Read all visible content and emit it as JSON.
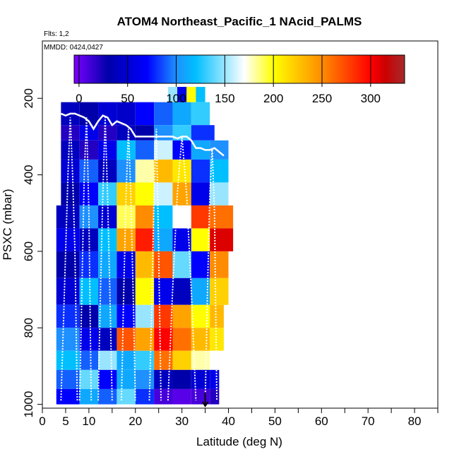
{
  "chart_data": {
    "type": "heatmap",
    "title": "ATOM4 Northeast_Pacific_1 NAcid_PALMS",
    "flights_note": "Flts: 1,2",
    "date_note": "MMDD: 0424,0427",
    "xlabel": "Latitude (deg N)",
    "ylabel": "PSXC (mbar)",
    "xlim": [
      0,
      85
    ],
    "ylim": [
      1010,
      50
    ],
    "x_ticks": [
      0,
      5,
      10,
      20,
      30,
      40,
      50,
      60,
      70,
      80
    ],
    "x_minor_ticks": [
      15,
      25,
      35,
      45,
      55,
      65,
      75,
      85
    ],
    "y_ticks": [
      200,
      400,
      600,
      800,
      1000
    ],
    "colorbar": {
      "ticks": [
        0,
        50,
        100,
        150,
        200,
        250,
        300
      ],
      "range": [
        -5,
        335
      ],
      "colors": [
        "#7b00ff",
        "#0000aa",
        "#0000ff",
        "#1e90ff",
        "#00bfff",
        "#ffffff",
        "#ffff00",
        "#ff8c00",
        "#ff0000",
        "#cc0000",
        "#a52a2a"
      ],
      "color_stops": [
        -5,
        30,
        70,
        100,
        120,
        170,
        200,
        250,
        300,
        315,
        335
      ]
    },
    "layers": [
      {
        "p_top": 210,
        "p_bot": 270,
        "cells": [
          [
            4,
            8,
            40
          ],
          [
            8,
            12,
            30
          ],
          [
            12,
            16,
            50
          ],
          [
            16,
            20,
            45
          ],
          [
            20,
            24,
            70
          ],
          [
            24,
            28,
            90
          ],
          [
            28,
            32,
            110
          ],
          [
            32,
            36,
            130
          ]
        ]
      },
      {
        "p_top": 170,
        "p_bot": 210,
        "cells": [
          [
            27,
            29,
            150
          ],
          [
            29,
            31,
            60
          ],
          [
            31,
            33,
            200
          ],
          [
            33,
            35,
            120
          ]
        ]
      },
      {
        "p_top": 270,
        "p_bot": 310,
        "cells": [
          [
            4,
            8,
            20
          ],
          [
            8,
            12,
            60
          ],
          [
            12,
            16,
            20
          ],
          [
            16,
            20,
            40
          ],
          [
            20,
            24,
            30
          ],
          [
            24,
            28,
            100
          ],
          [
            28,
            32,
            130
          ],
          [
            32,
            37,
            80
          ]
        ]
      },
      {
        "p_top": 310,
        "p_bot": 360,
        "cells": [
          [
            4,
            8,
            40
          ],
          [
            8,
            12,
            20
          ],
          [
            12,
            16,
            60
          ],
          [
            16,
            20,
            120
          ],
          [
            20,
            24,
            90
          ],
          [
            24,
            28,
            160
          ],
          [
            28,
            32,
            70
          ],
          [
            32,
            36,
            110
          ],
          [
            36,
            40,
            100
          ]
        ]
      },
      {
        "p_top": 360,
        "p_bot": 420,
        "cells": [
          [
            4,
            8,
            50
          ],
          [
            8,
            12,
            90
          ],
          [
            12,
            16,
            40
          ],
          [
            16,
            20,
            100
          ],
          [
            20,
            24,
            180
          ],
          [
            24,
            28,
            230
          ],
          [
            28,
            32,
            210
          ],
          [
            32,
            36,
            80
          ],
          [
            36,
            40,
            120
          ]
        ]
      },
      {
        "p_top": 420,
        "p_bot": 480,
        "cells": [
          [
            4,
            8,
            30
          ],
          [
            8,
            12,
            70
          ],
          [
            12,
            16,
            130
          ],
          [
            16,
            20,
            220
          ],
          [
            20,
            24,
            200
          ],
          [
            24,
            28,
            160
          ],
          [
            28,
            32,
            240
          ],
          [
            32,
            36,
            60
          ],
          [
            36,
            40,
            150
          ]
        ]
      },
      {
        "p_top": 480,
        "p_bot": 540,
        "cells": [
          [
            3,
            8,
            40
          ],
          [
            8,
            12,
            100
          ],
          [
            12,
            16,
            50
          ],
          [
            16,
            20,
            190
          ],
          [
            20,
            24,
            250
          ],
          [
            24,
            28,
            120
          ],
          [
            28,
            32,
            170
          ],
          [
            32,
            36,
            280
          ],
          [
            36,
            41,
            260
          ]
        ]
      },
      {
        "p_top": 540,
        "p_bot": 600,
        "cells": [
          [
            3,
            8,
            60
          ],
          [
            8,
            12,
            40
          ],
          [
            12,
            16,
            120
          ],
          [
            16,
            20,
            240
          ],
          [
            20,
            24,
            290
          ],
          [
            24,
            28,
            110
          ],
          [
            28,
            32,
            60
          ],
          [
            32,
            36,
            200
          ],
          [
            36,
            41,
            310
          ]
        ]
      },
      {
        "p_top": 600,
        "p_bot": 670,
        "cells": [
          [
            3,
            8,
            30
          ],
          [
            8,
            12,
            80
          ],
          [
            12,
            16,
            110
          ],
          [
            16,
            20,
            60
          ],
          [
            20,
            24,
            230
          ],
          [
            24,
            28,
            270
          ],
          [
            28,
            32,
            140
          ],
          [
            32,
            36,
            70
          ],
          [
            36,
            40,
            250
          ]
        ]
      },
      {
        "p_top": 670,
        "p_bot": 740,
        "cells": [
          [
            3,
            8,
            50
          ],
          [
            8,
            12,
            120
          ],
          [
            12,
            16,
            90
          ],
          [
            16,
            20,
            30
          ],
          [
            20,
            24,
            200
          ],
          [
            24,
            28,
            60
          ],
          [
            28,
            32,
            40
          ],
          [
            32,
            36,
            110
          ],
          [
            36,
            40,
            220
          ]
        ]
      },
      {
        "p_top": 740,
        "p_bot": 800,
        "cells": [
          [
            3,
            8,
            80
          ],
          [
            8,
            12,
            30
          ],
          [
            12,
            16,
            110
          ],
          [
            16,
            20,
            70
          ],
          [
            20,
            24,
            150
          ],
          [
            24,
            28,
            280
          ],
          [
            28,
            32,
            240
          ],
          [
            32,
            36,
            200
          ],
          [
            36,
            39,
            230
          ]
        ]
      },
      {
        "p_top": 800,
        "p_bot": 860,
        "cells": [
          [
            3,
            8,
            100
          ],
          [
            8,
            12,
            60
          ],
          [
            12,
            16,
            40
          ],
          [
            16,
            20,
            270
          ],
          [
            20,
            24,
            240
          ],
          [
            24,
            28,
            300
          ],
          [
            28,
            32,
            260
          ],
          [
            32,
            36,
            230
          ],
          [
            36,
            39,
            210
          ]
        ]
      },
      {
        "p_top": 860,
        "p_bot": 910,
        "cells": [
          [
            3,
            8,
            120
          ],
          [
            8,
            12,
            90
          ],
          [
            12,
            16,
            150
          ],
          [
            16,
            20,
            110
          ],
          [
            20,
            24,
            130
          ],
          [
            24,
            28,
            260
          ],
          [
            28,
            32,
            220
          ],
          [
            32,
            36,
            180
          ],
          [
            36,
            39,
            170
          ]
        ]
      },
      {
        "p_top": 910,
        "p_bot": 960,
        "cells": [
          [
            3,
            8,
            90
          ],
          [
            8,
            12,
            140
          ],
          [
            12,
            16,
            70
          ],
          [
            16,
            20,
            110
          ],
          [
            20,
            24,
            100
          ],
          [
            24,
            28,
            40
          ],
          [
            28,
            32,
            30
          ],
          [
            32,
            36,
            50
          ],
          [
            36,
            38,
            60
          ]
        ]
      },
      {
        "p_top": 960,
        "p_bot": 1000,
        "cells": [
          [
            3,
            8,
            70
          ],
          [
            8,
            12,
            110
          ],
          [
            12,
            16,
            90
          ],
          [
            16,
            20,
            140
          ],
          [
            20,
            24,
            80
          ],
          [
            24,
            28,
            10
          ],
          [
            28,
            32,
            5
          ],
          [
            32,
            36,
            10
          ],
          [
            36,
            38,
            20
          ]
        ]
      }
    ],
    "flight_track": {
      "x": [
        4,
        5,
        6,
        7,
        8,
        9,
        10,
        11,
        12,
        13,
        14,
        15,
        16,
        17,
        18,
        19,
        20,
        21,
        22,
        23,
        24,
        25,
        26,
        27,
        28,
        29,
        30,
        31,
        32,
        33,
        34,
        35,
        36,
        37,
        38,
        39
      ],
      "y": [
        240,
        245,
        240,
        240,
        245,
        250,
        260,
        280,
        260,
        245,
        250,
        270,
        260,
        265,
        270,
        280,
        300,
        300,
        300,
        300,
        300,
        300,
        300,
        300,
        300,
        305,
        300,
        300,
        310,
        330,
        330,
        335,
        335,
        330,
        340,
        350
      ]
    },
    "profiles": [
      {
        "x": [
          4,
          4.5,
          5,
          5.5,
          6,
          6.5,
          7,
          7.5
        ],
        "y": [
          990,
          800,
          600,
          400,
          250,
          400,
          600,
          990
        ]
      },
      {
        "x": [
          8,
          8.5,
          9,
          9.5,
          10,
          10.5
        ],
        "y": [
          990,
          700,
          400,
          250,
          500,
          990
        ]
      },
      {
        "x": [
          12,
          12.5,
          13,
          13.5,
          14,
          14.5,
          15
        ],
        "y": [
          990,
          700,
          450,
          250,
          450,
          700,
          990
        ]
      },
      {
        "x": [
          17,
          17.5,
          18,
          18.5,
          19,
          19.5,
          20
        ],
        "y": [
          990,
          700,
          450,
          280,
          450,
          700,
          990
        ]
      },
      {
        "x": [
          23,
          23.5,
          24,
          24.5,
          25,
          25.5
        ],
        "y": [
          990,
          750,
          450,
          280,
          600,
          990
        ]
      },
      {
        "x": [
          27,
          28,
          29,
          30,
          31,
          32,
          33
        ],
        "y": [
          990,
          700,
          450,
          300,
          450,
          700,
          990
        ]
      },
      {
        "x": [
          35,
          35.5,
          36,
          36.5,
          37,
          37.5
        ],
        "y": [
          990,
          700,
          450,
          330,
          500,
          990
        ]
      }
    ],
    "arrow_marker": {
      "x": 35
    }
  }
}
